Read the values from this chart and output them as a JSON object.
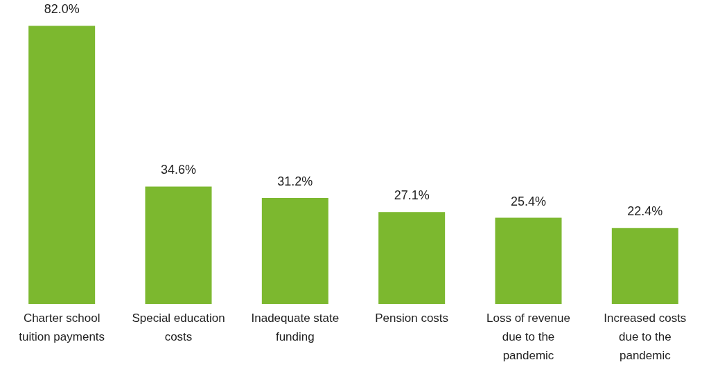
{
  "chart_data": {
    "type": "bar",
    "categories": [
      "Charter school tuition payments",
      "Special education costs",
      "Inadequate state funding",
      "Pension costs",
      "Loss of revenue due to the pandemic",
      "Increased costs due to the pandemic"
    ],
    "values": [
      82.0,
      34.6,
      31.2,
      27.1,
      25.4,
      22.4
    ],
    "color": "#7cb82f",
    "value_labels": [
      "82.0%",
      "34.6%",
      "31.2%",
      "27.1%",
      "25.4%",
      "22.4%"
    ]
  }
}
